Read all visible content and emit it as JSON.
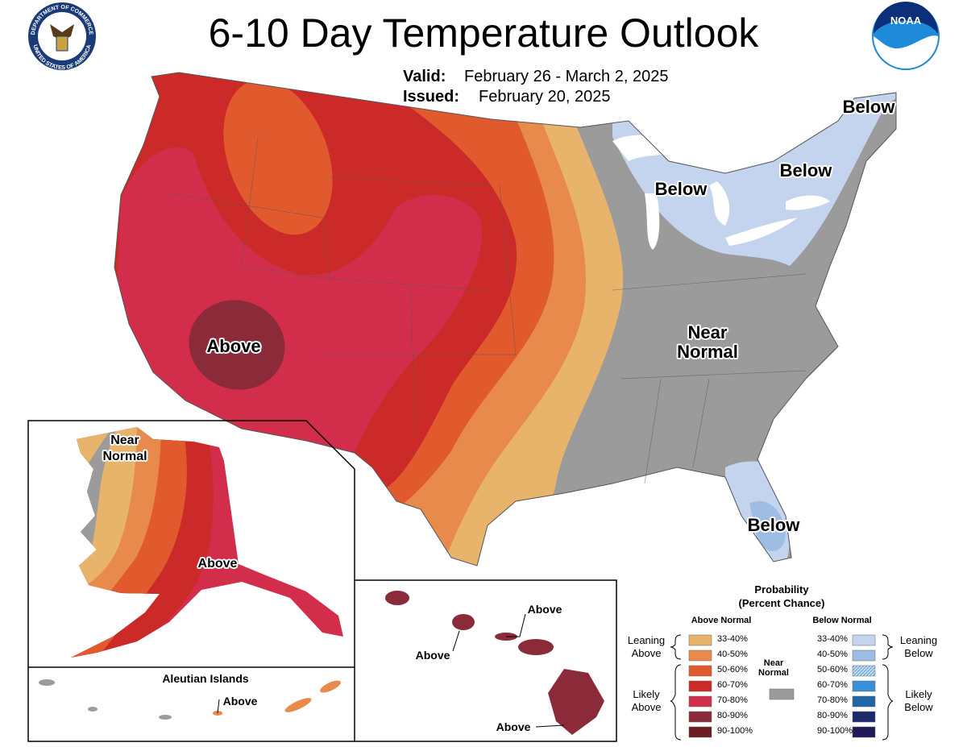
{
  "header": {
    "title": "6-10 Day Temperature Outlook",
    "valid_label": "Valid:",
    "valid": "February 26 - March 2, 2025",
    "issued_label": "Issued:",
    "issued": "February 20, 2025",
    "seal_top": "DEPARTMENT OF COMMERCE",
    "seal_bottom": "UNITED STATES OF AMERICA",
    "noaa": "NOAA"
  },
  "map_labels": [
    "Below",
    "Below",
    "Below",
    "Below",
    "Near Normal",
    "Above"
  ],
  "alaska": {
    "labels": [
      "Near Normal",
      "Above"
    ]
  },
  "aleutian": {
    "title": "Aleutian Islands",
    "label": "Above"
  },
  "hawaii": {
    "labels": [
      "Above",
      "Above",
      "Above"
    ]
  },
  "legend": {
    "title": "Probability",
    "subtitle": "(Percent Chance)",
    "above_header": "Above Normal",
    "below_header": "Below Normal",
    "near_normal": "Near Normal",
    "near_color": "#9b9b9b",
    "above_groups": [
      "Leaning Above",
      "Likely Above"
    ],
    "below_groups": [
      "Leaning Below",
      "Likely Below"
    ],
    "above": [
      {
        "label": "33-40%",
        "color": "#e8b46c"
      },
      {
        "label": "40-50%",
        "color": "#e88a4c"
      },
      {
        "label": "50-60%",
        "color": "#e05a2e"
      },
      {
        "label": "60-70%",
        "color": "#cc2a29"
      },
      {
        "label": "70-80%",
        "color": "#d22e4c"
      },
      {
        "label": "80-90%",
        "color": "#8b2b3a"
      },
      {
        "label": "90-100%",
        "color": "#6b1e22"
      }
    ],
    "below": [
      {
        "label": "33-40%",
        "color": "#c4d4ee"
      },
      {
        "label": "40-50%",
        "color": "#9dbde3"
      },
      {
        "label": "50-60%",
        "color": "#7fb5e0"
      },
      {
        "label": "60-70%",
        "color": "#3a8fd6"
      },
      {
        "label": "70-80%",
        "color": "#2065a5"
      },
      {
        "label": "80-90%",
        "color": "#1c2a6b"
      },
      {
        "label": "90-100%",
        "color": "#20195a"
      }
    ]
  }
}
